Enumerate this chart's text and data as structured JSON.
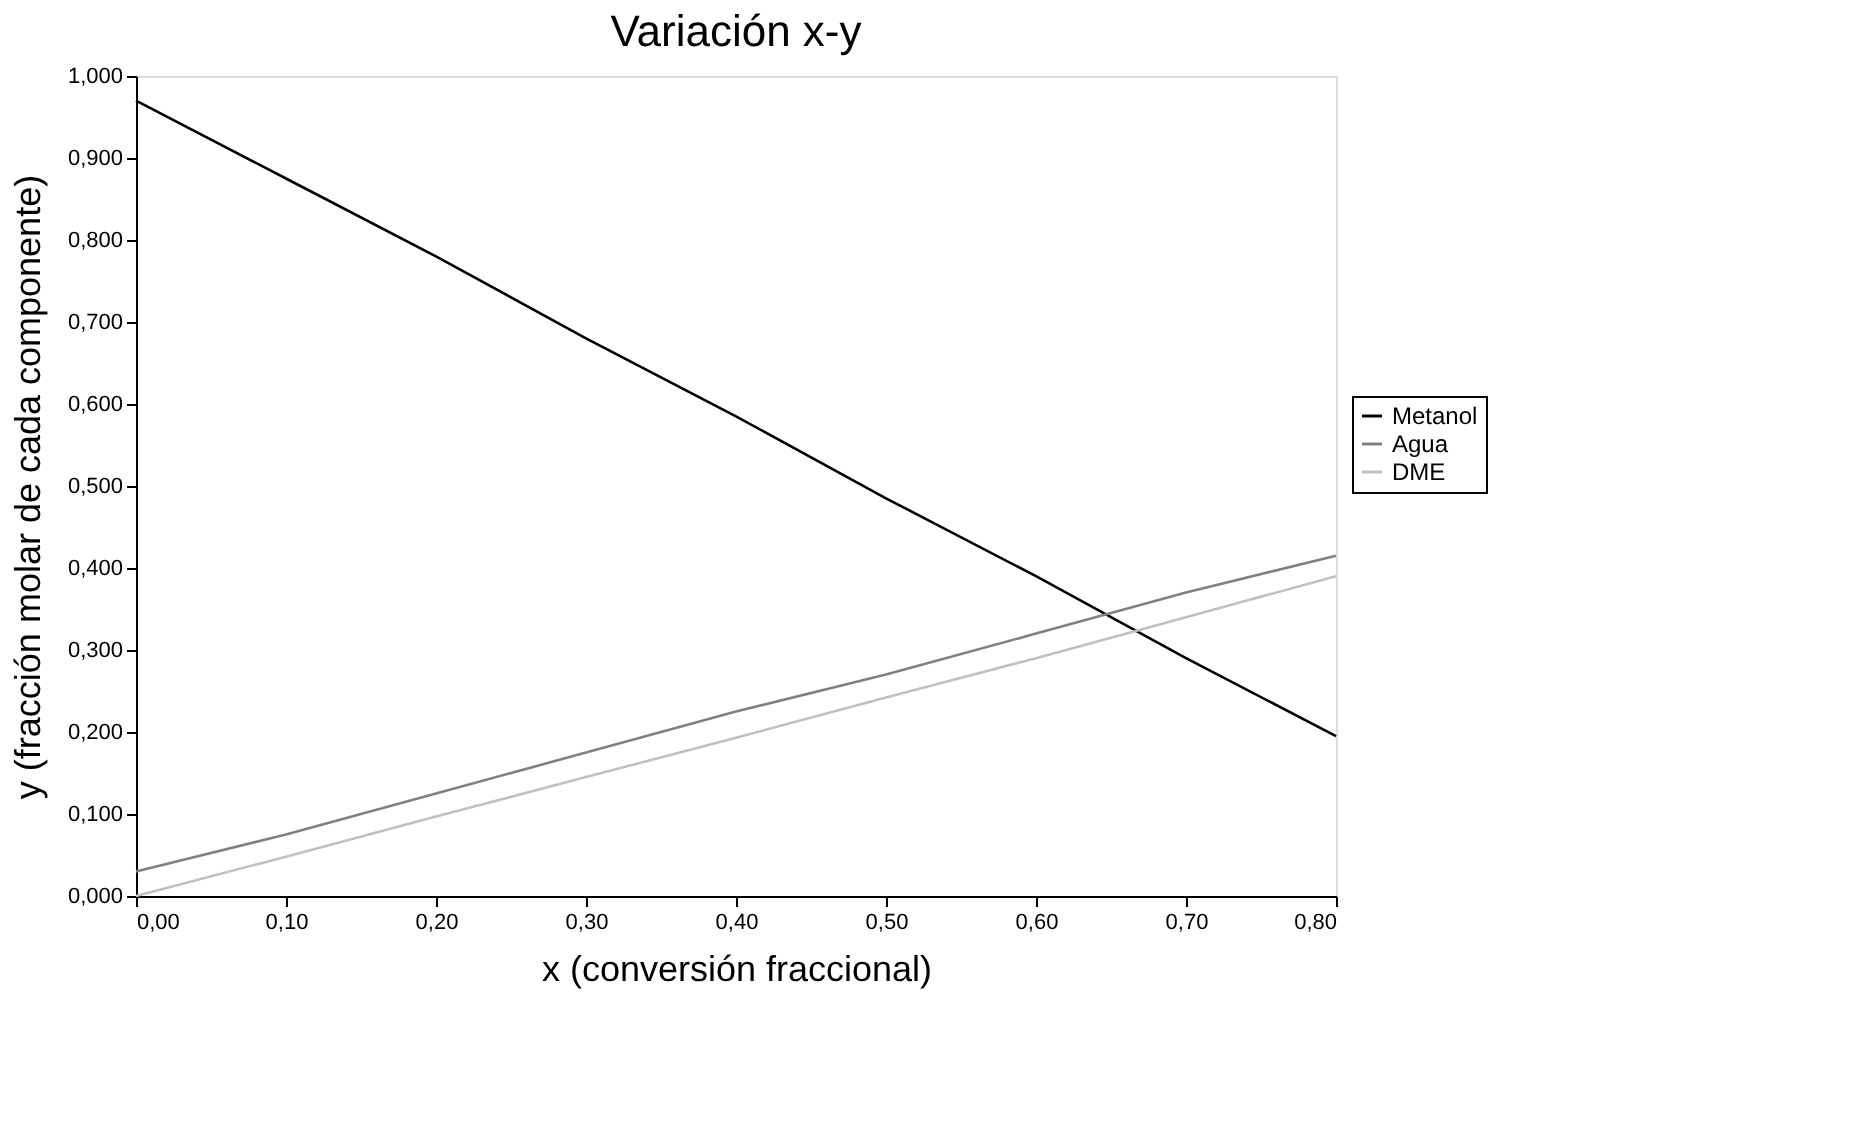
{
  "chart_data": {
    "type": "line",
    "title": "Variación x-y",
    "xlabel": "x (conversión fraccional)",
    "ylabel": "y (fracción molar de cada componente)",
    "x": [
      0,
      0.1,
      0.2,
      0.3,
      0.4,
      0.5,
      0.6,
      0.7,
      0.8
    ],
    "series": [
      {
        "name": "Metanol",
        "color": "#000000",
        "values": [
          0.97,
          0.875,
          0.78,
          0.68,
          0.585,
          0.485,
          0.39,
          0.29,
          0.195
        ]
      },
      {
        "name": "Agua",
        "color": "#808080",
        "values": [
          0.03,
          0.075,
          0.125,
          0.175,
          0.225,
          0.27,
          0.32,
          0.37,
          0.415
        ]
      },
      {
        "name": "DME",
        "color": "#c0c0c0",
        "values": [
          0.0,
          0.048,
          0.097,
          0.145,
          0.193,
          0.242,
          0.29,
          0.34,
          0.39
        ]
      }
    ],
    "xlim": [
      0,
      0.8
    ],
    "xticks": [
      {
        "value": 0,
        "label": "0,00"
      },
      {
        "value": 0.1,
        "label": "0,10"
      },
      {
        "value": 0.2,
        "label": "0,20"
      },
      {
        "value": 0.3,
        "label": "0,30"
      },
      {
        "value": 0.4,
        "label": "0,40"
      },
      {
        "value": 0.5,
        "label": "0,50"
      },
      {
        "value": 0.6,
        "label": "0,60"
      },
      {
        "value": 0.7,
        "label": "0,70"
      },
      {
        "value": 0.8,
        "label": "0,80"
      }
    ],
    "ylim": [
      0,
      1
    ],
    "yticks": [
      {
        "value": 0,
        "label": "0,000"
      },
      {
        "value": 0.1,
        "label": "0,100"
      },
      {
        "value": 0.2,
        "label": "0,200"
      },
      {
        "value": 0.3,
        "label": "0,300"
      },
      {
        "value": 0.4,
        "label": "0,400"
      },
      {
        "value": 0.5,
        "label": "0,500"
      },
      {
        "value": 0.6,
        "label": "0,600"
      },
      {
        "value": 0.7,
        "label": "0,700"
      },
      {
        "value": 0.8,
        "label": "0,800"
      },
      {
        "value": 0.9,
        "label": "0,900"
      },
      {
        "value": 1,
        "label": "1,000"
      }
    ],
    "grid": false,
    "legend": "right",
    "marker": "none",
    "line_style": "solid"
  }
}
